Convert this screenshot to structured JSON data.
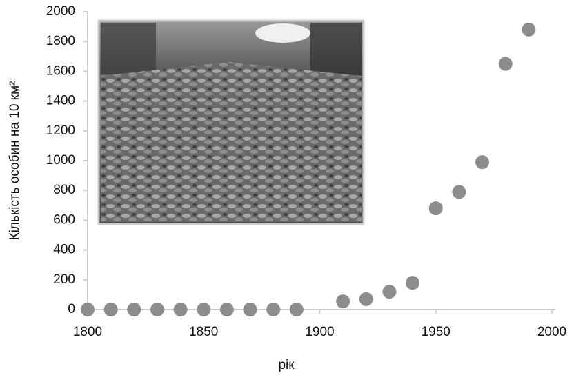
{
  "chart_data": {
    "type": "scatter",
    "x_label": "рік",
    "y_label": "Кількість особин на 10 км²",
    "x": [
      1800,
      1810,
      1820,
      1830,
      1840,
      1850,
      1860,
      1870,
      1880,
      1890,
      1910,
      1920,
      1930,
      1940,
      1950,
      1960,
      1970,
      1980,
      1990
    ],
    "values": [
      0,
      0,
      0,
      0,
      0,
      0,
      0,
      0,
      0,
      0,
      55,
      70,
      120,
      180,
      680,
      790,
      990,
      1650,
      1880
    ],
    "color": "#8c8c8c",
    "xlim": [
      1800,
      2000
    ],
    "xticks": [
      1800,
      1850,
      1900,
      1950,
      2000
    ],
    "ylim": [
      0,
      2000
    ],
    "yticks": [
      0,
      200,
      400,
      600,
      800,
      1000,
      1200,
      1400,
      1600,
      1800,
      2000
    ]
  }
}
